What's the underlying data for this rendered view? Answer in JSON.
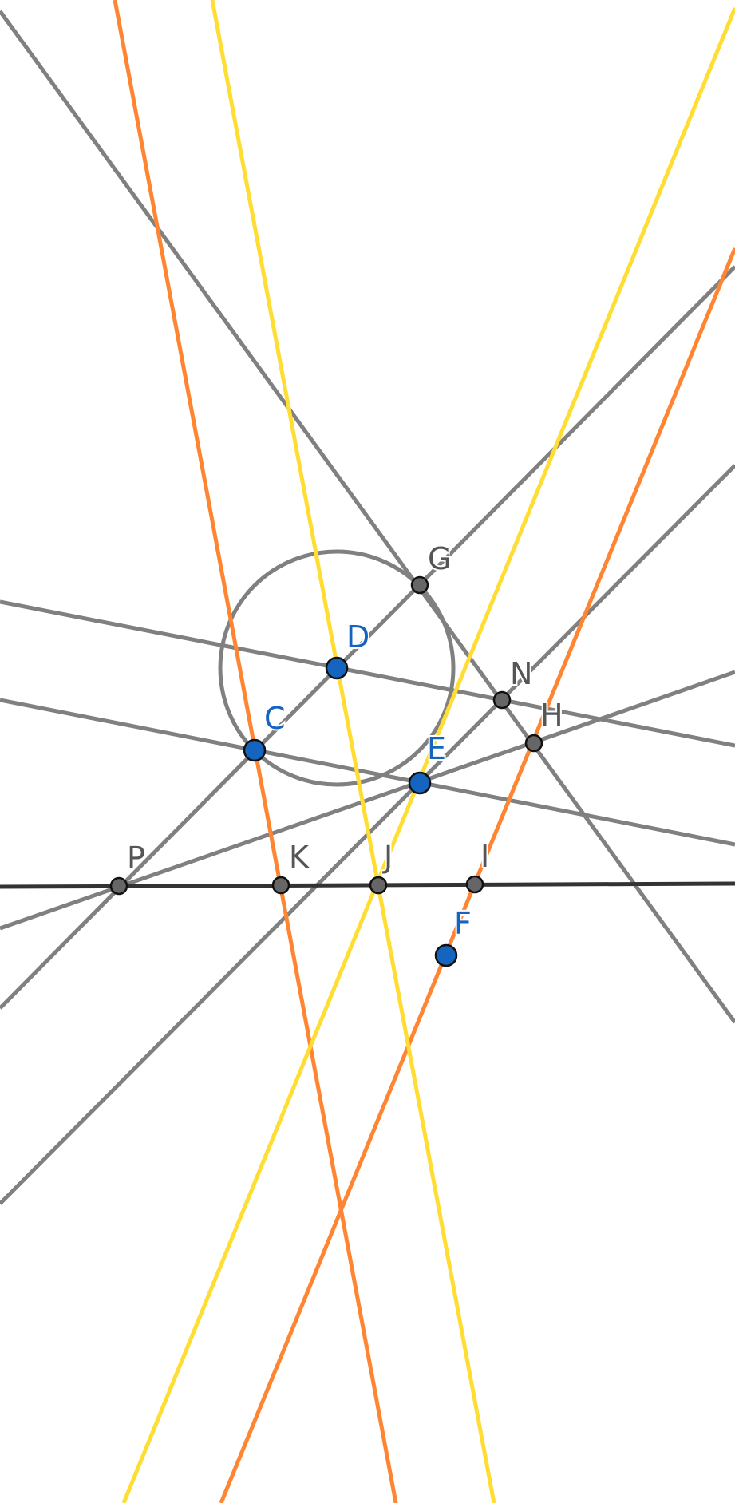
{
  "diagram": {
    "colors": {
      "gray": "#808080",
      "dark": "#333333",
      "orange": "#ff8533",
      "yellow": "#ffdd33",
      "point_fill_gray": "#666666",
      "point_fill_blue": "#1565c0",
      "label_gray": "#555555",
      "label_blue": "#1565c0"
    },
    "points": [
      {
        "id": "C",
        "label": "C",
        "kind": "free"
      },
      {
        "id": "D",
        "label": "D",
        "kind": "free"
      },
      {
        "id": "E",
        "label": "E",
        "kind": "free"
      },
      {
        "id": "F",
        "label": "F",
        "kind": "free"
      },
      {
        "id": "G",
        "label": "G",
        "kind": "derived"
      },
      {
        "id": "H",
        "label": "H",
        "kind": "derived"
      },
      {
        "id": "N",
        "label": "N",
        "kind": "derived"
      },
      {
        "id": "I",
        "label": "I",
        "kind": "derived"
      },
      {
        "id": "J",
        "label": "J",
        "kind": "derived"
      },
      {
        "id": "K",
        "label": "K",
        "kind": "derived"
      },
      {
        "id": "P",
        "label": "P",
        "kind": "derived"
      }
    ]
  }
}
